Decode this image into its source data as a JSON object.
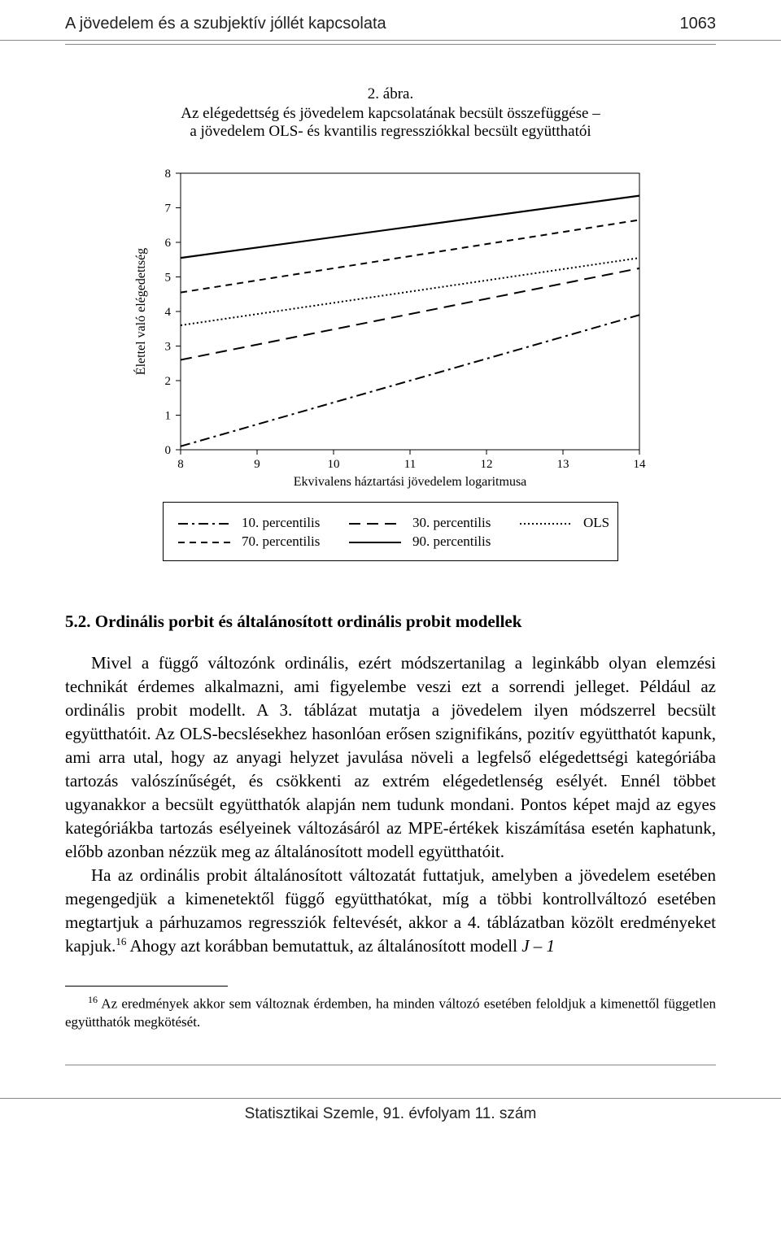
{
  "header": {
    "title": "A jövedelem és a szubjektív jóllét kapcsolata",
    "page": "1063"
  },
  "figure": {
    "label": "2. ábra.",
    "title": "Az elégedettség és jövedelem kapcsolatának becsült összefüggése –",
    "subtitle": "a jövedelem OLS- és kvantilis regressziókkal becsült együtthatói"
  },
  "chart": {
    "type": "line",
    "ylabel": "Élettel való elégedettség",
    "xlabel": "Ekvivalens háztartási jövedelem logaritmusa",
    "xlim": [
      8,
      14
    ],
    "ylim": [
      0,
      8
    ],
    "xticks": [
      8,
      9,
      10,
      11,
      12,
      13,
      14
    ],
    "yticks": [
      0,
      1,
      2,
      3,
      4,
      5,
      6,
      7,
      8
    ],
    "background_color": "#ffffff",
    "axis_color": "#000000",
    "tick_fontsize": 15,
    "label_fontsize": 16,
    "series": [
      {
        "name": "90. percentilis",
        "dash": "none",
        "color": "#000000",
        "width": 2.2,
        "points": [
          [
            8,
            5.55
          ],
          [
            14,
            7.35
          ]
        ]
      },
      {
        "name": "70. percentilis",
        "dash": "8 6",
        "color": "#000000",
        "width": 2.0,
        "points": [
          [
            8,
            4.55
          ],
          [
            14,
            6.65
          ]
        ]
      },
      {
        "name": "OLS",
        "dash": "2 3",
        "color": "#000000",
        "width": 2.0,
        "points": [
          [
            8,
            3.6
          ],
          [
            14,
            5.55
          ]
        ]
      },
      {
        "name": "30. percentilis",
        "dash": "14 8",
        "color": "#000000",
        "width": 2.0,
        "points": [
          [
            8,
            2.6
          ],
          [
            14,
            5.25
          ]
        ]
      },
      {
        "name": "10. percentilis",
        "dash": "12 5 3 5",
        "color": "#000000",
        "width": 2.0,
        "points": [
          [
            8,
            0.1
          ],
          [
            14,
            3.9
          ]
        ]
      }
    ]
  },
  "legend": {
    "items_row1": [
      {
        "swatch_dash": "12 5 3 5",
        "label": "10. percentilis"
      },
      {
        "swatch_dash": "14 8",
        "label": "30. percentilis"
      },
      {
        "swatch_dash": "2 3",
        "label": "OLS"
      }
    ],
    "items_row2": [
      {
        "swatch_dash": "8 6",
        "label": "70. percentilis"
      },
      {
        "swatch_dash": "none",
        "label": "90. percentilis"
      }
    ]
  },
  "section": {
    "heading": "5.2. Ordinális porbit és általánosított ordinális probit modellek",
    "para1": "Mivel a függő változónk ordinális, ezért módszertanilag a leginkább olyan elemzési technikát érdemes alkalmazni, ami figyelembe veszi ezt a sorrendi jelleget. Például az ordinális probit modellt. A 3. táblázat mutatja a jövedelem ilyen módszerrel becsült együtthatóit. Az OLS-becslésekhez hasonlóan erősen szignifikáns, pozitív együtthatót kapunk, ami arra utal, hogy az anyagi helyzet javulása növeli a legfelső elégedettségi kategóriába tartozás valószínűségét, és csökkenti az extrém elégedetlenség esélyét. Ennél többet ugyanakkor a becsült együtthatók alapján nem tudunk mondani. Pontos képet majd az egyes kategóriákba tartozás esélyeinek változásáról az MPE-értékek kiszámítása esetén kaphatunk, előbb azonban nézzük meg az általánosított modell együtthatóit.",
    "para2a": "Ha az ordinális probit általánosított változatát futtatjuk, amelyben a jövedelem esetében megengedjük a kimenetektől függő együtthatókat, míg a többi kontrollváltozó esetében megtartjuk a párhuzamos regressziók feltevését, akkor a 4. táblázatban közölt eredményeket kapjuk.",
    "fnref": "16",
    "para2b": " Ahogy azt korábban bemutattuk, az általánosított modell ",
    "tail_italic": "J – 1"
  },
  "footnote": {
    "marker": "16",
    "text": " Az eredmények akkor sem változnak érdemben, ha minden változó esetében feloldjuk a kimenettől független együtthatók megkötését."
  },
  "footer": {
    "text": "Statisztikai Szemle, 91. évfolyam 11. szám"
  }
}
